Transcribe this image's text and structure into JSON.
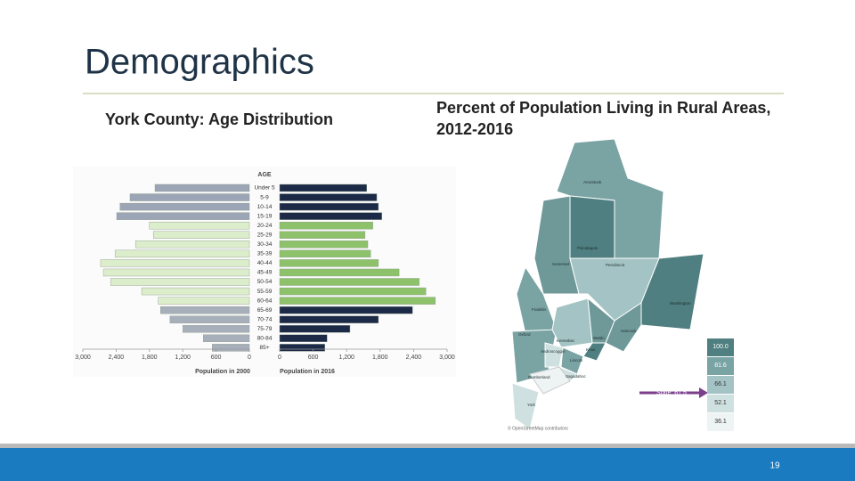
{
  "slide": {
    "title": "Demographics",
    "page_number": "19"
  },
  "left_panel": {
    "heading": "York County: Age Distribution"
  },
  "chart_data": {
    "type": "pyramid",
    "category_title": "AGE",
    "categories": [
      "Under 5",
      "5-9",
      "10-14",
      "15-19",
      "20-24",
      "25-29",
      "30-34",
      "35-39",
      "40-44",
      "45-49",
      "50-54",
      "55-59",
      "60-64",
      "65-69",
      "70-74",
      "75-79",
      "80-84",
      "85+"
    ],
    "series": [
      {
        "name": "Population in 2000",
        "colors": [
          "#9ba5b5",
          "#9ba5b5",
          "#9ba5b5",
          "#9ba5b5",
          "#dcedcb",
          "#dcedcb",
          "#dcedcb",
          "#dcedcb",
          "#dcedcb",
          "#dcedcb",
          "#dcedcb",
          "#dcedcb",
          "#dcedcb",
          "#a7afbb",
          "#a7afbb",
          "#a7afbb",
          "#a7afbb",
          "#a7afbb"
        ],
        "values": [
          1700,
          2150,
          2330,
          2390,
          1800,
          1730,
          2050,
          2420,
          2680,
          2630,
          2500,
          1940,
          1640,
          1600,
          1430,
          1200,
          830,
          670
        ]
      },
      {
        "name": "Population in 2016",
        "colors": [
          "#1c2a47",
          "#1c2a47",
          "#1c2a47",
          "#1c2a47",
          "#8dc26b",
          "#8dc26b",
          "#8dc26b",
          "#8dc26b",
          "#8dc26b",
          "#8dc26b",
          "#8dc26b",
          "#8dc26b",
          "#8dc26b",
          "#1c2a47",
          "#1c2a47",
          "#1c2a47",
          "#1c2a47",
          "#1c2a47"
        ],
        "values": [
          1560,
          1740,
          1770,
          1830,
          1670,
          1530,
          1580,
          1630,
          1770,
          2140,
          2500,
          2620,
          2790,
          2380,
          1770,
          1260,
          850,
          810
        ]
      }
    ],
    "xlim": [
      0,
      3000
    ],
    "xticks": [
      0,
      600,
      {
        "value": 1200,
        "label": "1,200"
      },
      {
        "value": 1800,
        "label": "1,800"
      },
      {
        "value": 2400,
        "label": "2,400"
      },
      {
        "value": 3000,
        "label": "3,000"
      }
    ]
  },
  "right_panel": {
    "heading_lines": [
      "Percent of Population Living in Rural Areas,",
      "2012-2016"
    ],
    "map": {
      "county_labels": [
        "Aroostook",
        "Piscataquis",
        "Somerset",
        "Penobscot",
        "Franklin",
        "Washington",
        "Hancock",
        "Oxford",
        "Kennebec",
        "Waldo",
        "Androscoggin",
        "Knox",
        "Lincoln",
        "Sagadahoc",
        "Cumberland",
        "York"
      ],
      "legend_labels": [
        "100.0",
        "81.6",
        "66.1",
        "52.1",
        "36.1"
      ],
      "legend_colors": [
        "#4f7f80",
        "#7aa3a3",
        "#a4c3c4",
        "#cfe0e0",
        "#eef3f3"
      ],
      "state_label": "State: 61.5",
      "attribution": "© OpenStreetMap contributors"
    }
  }
}
